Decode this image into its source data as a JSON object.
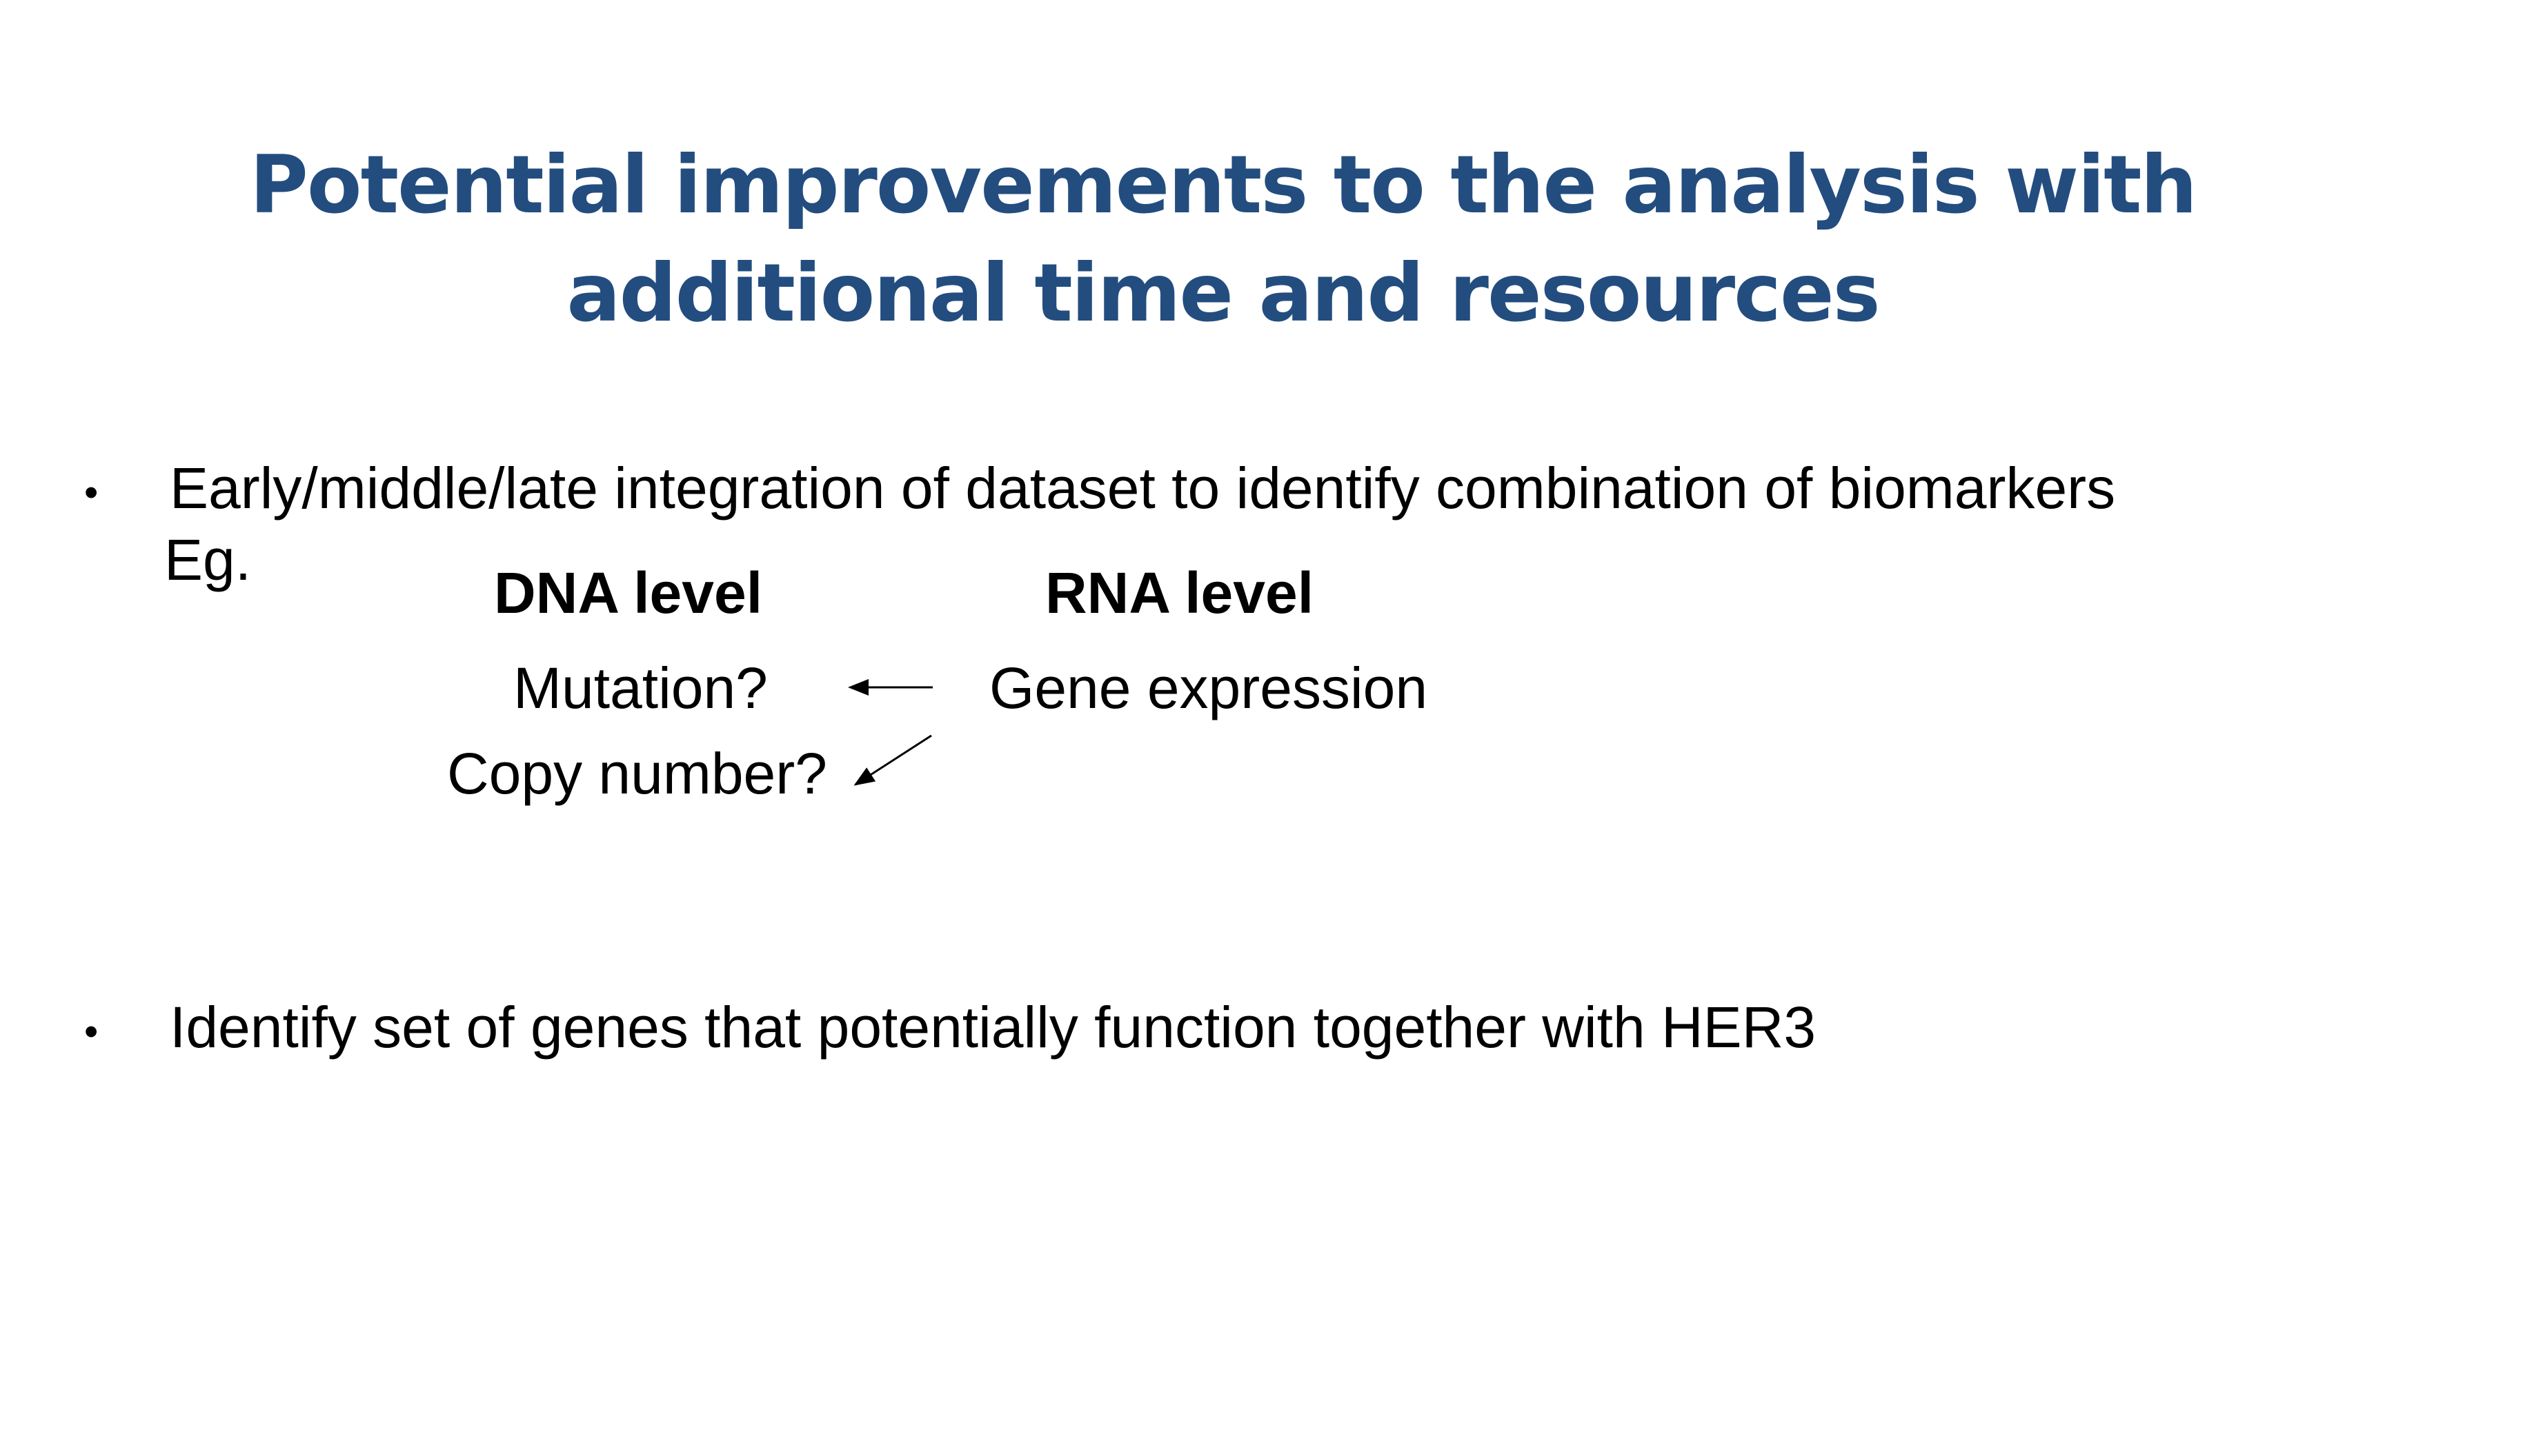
{
  "slide": {
    "title_line1": "Potential improvements to the analysis with",
    "title_line2": "additional time and resources",
    "title_color": "#234d7f"
  },
  "bullets": [
    {
      "marker": "•",
      "text": "Early/middle/late integration of dataset to identify combination of biomarkers"
    },
    {
      "marker": "•",
      "text": "Identify set of genes that potentially function together with HER3"
    }
  ],
  "example": {
    "prefix": "Eg.",
    "dna_header": "DNA level",
    "rna_header": "RNA level",
    "dna_items": [
      "Mutation?",
      "Copy number?"
    ],
    "rna_items": [
      "Gene expression"
    ]
  }
}
